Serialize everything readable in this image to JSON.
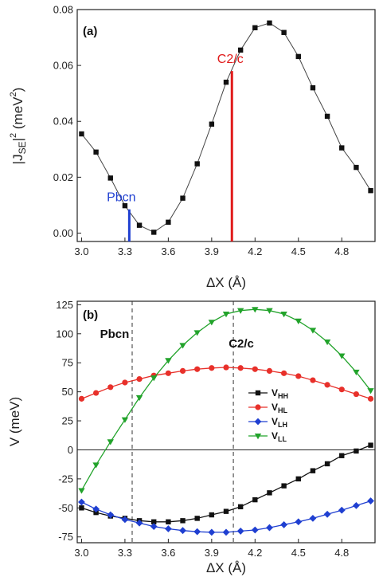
{
  "chart_data": [
    {
      "type": "line",
      "panel_label": "(a)",
      "xlabel": "ΔX (Å)",
      "ylabel": "|J",
      "ylabel_sub": "SE",
      "ylabel_rest": "|",
      "ylabel_sup": "2",
      "ylabel_unit": " (meV",
      "ylabel_unit_sup": "2",
      "ylabel_unit_end": ")",
      "xlim": [
        2.97,
        5.03
      ],
      "ylim": [
        -0.003,
        0.08
      ],
      "xticks": [
        3.0,
        3.3,
        3.6,
        3.9,
        4.2,
        4.5,
        4.8
      ],
      "xtick_labels": [
        "3.0",
        "3.3",
        "3.6",
        "3.9",
        "4.2",
        "4.5",
        "4.8"
      ],
      "yticks": [
        0.0,
        0.02,
        0.04,
        0.06,
        0.08
      ],
      "ytick_labels": [
        "0.00",
        "0.02",
        "0.04",
        "0.06",
        "0.08"
      ],
      "series": [
        {
          "color": "#111111",
          "marker": "square",
          "x": [
            3.0,
            3.1,
            3.2,
            3.3,
            3.4,
            3.5,
            3.6,
            3.7,
            3.8,
            3.9,
            4.0,
            4.1,
            4.2,
            4.3,
            4.4,
            4.5,
            4.6,
            4.7,
            4.8,
            4.9,
            5.0
          ],
          "y": [
            0.0355,
            0.029,
            0.0197,
            0.0098,
            0.0028,
            0.0003,
            0.0039,
            0.0125,
            0.0248,
            0.039,
            0.054,
            0.0655,
            0.0735,
            0.0752,
            0.0718,
            0.0632,
            0.052,
            0.0418,
            0.0305,
            0.0235,
            0.0152
          ]
        }
      ],
      "markers": [
        {
          "label": "Pbcn",
          "x": 3.33,
          "y_top": 0.0085,
          "color": "#1f3fd1"
        },
        {
          "label": "C2/c",
          "x": 4.04,
          "y_top": 0.058,
          "color": "#e01b1b"
        }
      ]
    },
    {
      "type": "line",
      "panel_label": "(b)",
      "xlabel": "ΔX (Å)",
      "ylabel": "V (meV)",
      "xlim": [
        2.97,
        5.03
      ],
      "ylim": [
        -80,
        128
      ],
      "xticks": [
        3.0,
        3.3,
        3.6,
        3.9,
        4.2,
        4.5,
        4.8
      ],
      "xtick_labels": [
        "3.0",
        "3.3",
        "3.6",
        "3.9",
        "4.2",
        "4.5",
        "4.8"
      ],
      "yticks": [
        -75,
        -50,
        -25,
        0,
        25,
        50,
        75,
        100,
        125
      ],
      "ytick_labels": [
        "-75",
        "-50",
        "-25",
        "0",
        "25",
        "50",
        "75",
        "100",
        "125"
      ],
      "vlines": [
        {
          "label": "Pbcn",
          "x": 3.35
        },
        {
          "label": "C2/c",
          "x": 4.05
        }
      ],
      "x": [
        3.0,
        3.1,
        3.2,
        3.3,
        3.4,
        3.5,
        3.6,
        3.7,
        3.8,
        3.9,
        4.0,
        4.1,
        4.2,
        4.3,
        4.4,
        4.5,
        4.6,
        4.7,
        4.8,
        4.9,
        5.0
      ],
      "series": [
        {
          "name": "V",
          "sub": "HH",
          "color": "#111111",
          "marker": "square",
          "values": [
            -50,
            -54,
            -57,
            -59,
            -61,
            -62,
            -62,
            -61,
            -59,
            -56,
            -53,
            -49,
            -43,
            -37,
            -31,
            -25,
            -18,
            -12,
            -5,
            -1,
            4
          ]
        },
        {
          "name": "V",
          "sub": "HL",
          "color": "#e8302a",
          "marker": "circle",
          "values": [
            44,
            49,
            54,
            58,
            61,
            64,
            66,
            68,
            69.5,
            70.5,
            71,
            70.5,
            69.5,
            68,
            66,
            63.5,
            60,
            56,
            52,
            48,
            44
          ]
        },
        {
          "name": "V",
          "sub": "LH",
          "color": "#1f3fd1",
          "marker": "diamond",
          "values": [
            -45,
            -51,
            -56,
            -60,
            -63,
            -66,
            -68,
            -69.5,
            -70.5,
            -71,
            -71,
            -70,
            -69,
            -67,
            -64.5,
            -62,
            -59,
            -55.5,
            -52,
            -48,
            -44
          ]
        },
        {
          "name": "V",
          "sub": "LL",
          "color": "#22a32b",
          "marker": "triangle-down",
          "values": [
            -35,
            -13,
            7,
            26,
            45,
            62,
            77,
            90,
            101,
            110,
            117,
            120,
            121,
            120,
            117,
            111,
            103,
            93,
            81,
            67,
            51
          ]
        }
      ]
    }
  ]
}
